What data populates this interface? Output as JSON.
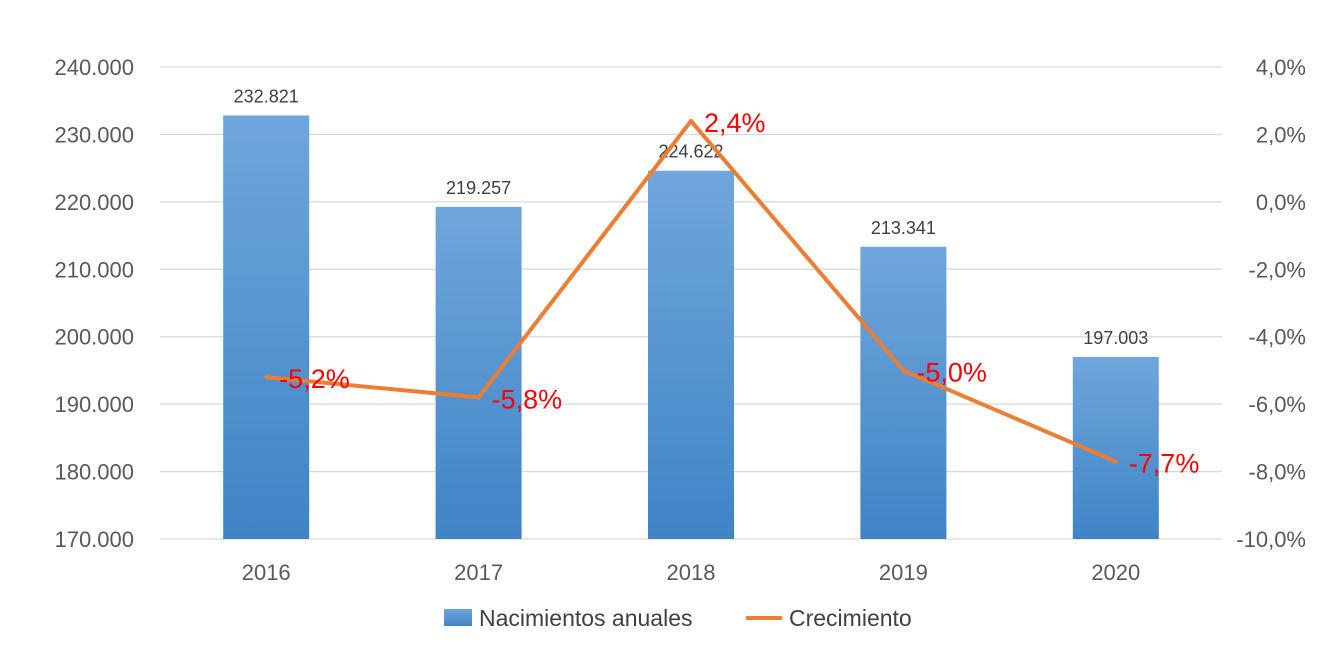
{
  "chart_data": {
    "type": "bar",
    "categories": [
      "2016",
      "2017",
      "2018",
      "2019",
      "2020"
    ],
    "series": [
      {
        "name": "Nacimientos anuales",
        "type": "bar",
        "axis": "left",
        "values": [
          232821,
          219257,
          224622,
          213341,
          197003
        ],
        "labels": [
          "232.821",
          "219.257",
          "224.622",
          "213.341",
          "197.003"
        ],
        "color": "#5b9bd5"
      },
      {
        "name": "Crecimiento",
        "type": "line",
        "axis": "right",
        "values": [
          -5.2,
          -5.8,
          2.4,
          -5.0,
          -7.7
        ],
        "labels": [
          "-5,2%",
          "-5,8%",
          "2,4%",
          "-5,0%",
          "-7,7%"
        ],
        "color": "#ed7d31",
        "label_color": "#ff0000"
      }
    ],
    "y_left": {
      "ylim": [
        170000,
        240000
      ],
      "ticks": [
        170000,
        180000,
        190000,
        200000,
        210000,
        220000,
        230000,
        240000
      ],
      "tick_labels": [
        "170.000",
        "180.000",
        "190.000",
        "200.000",
        "210.000",
        "220.000",
        "230.000",
        "240.000"
      ]
    },
    "y_right": {
      "ylim": [
        -10,
        4
      ],
      "ticks": [
        -10,
        -8,
        -6,
        -4,
        -2,
        0,
        2,
        4
      ],
      "tick_labels": [
        "-10,0%",
        "-8,0%",
        "-6,0%",
        "-4,0%",
        "-2,0%",
        "0,0%",
        "2,0%",
        "4,0%"
      ]
    },
    "grid": true,
    "legend": "bottom",
    "title": "",
    "xlabel": "",
    "ylabel": ""
  }
}
